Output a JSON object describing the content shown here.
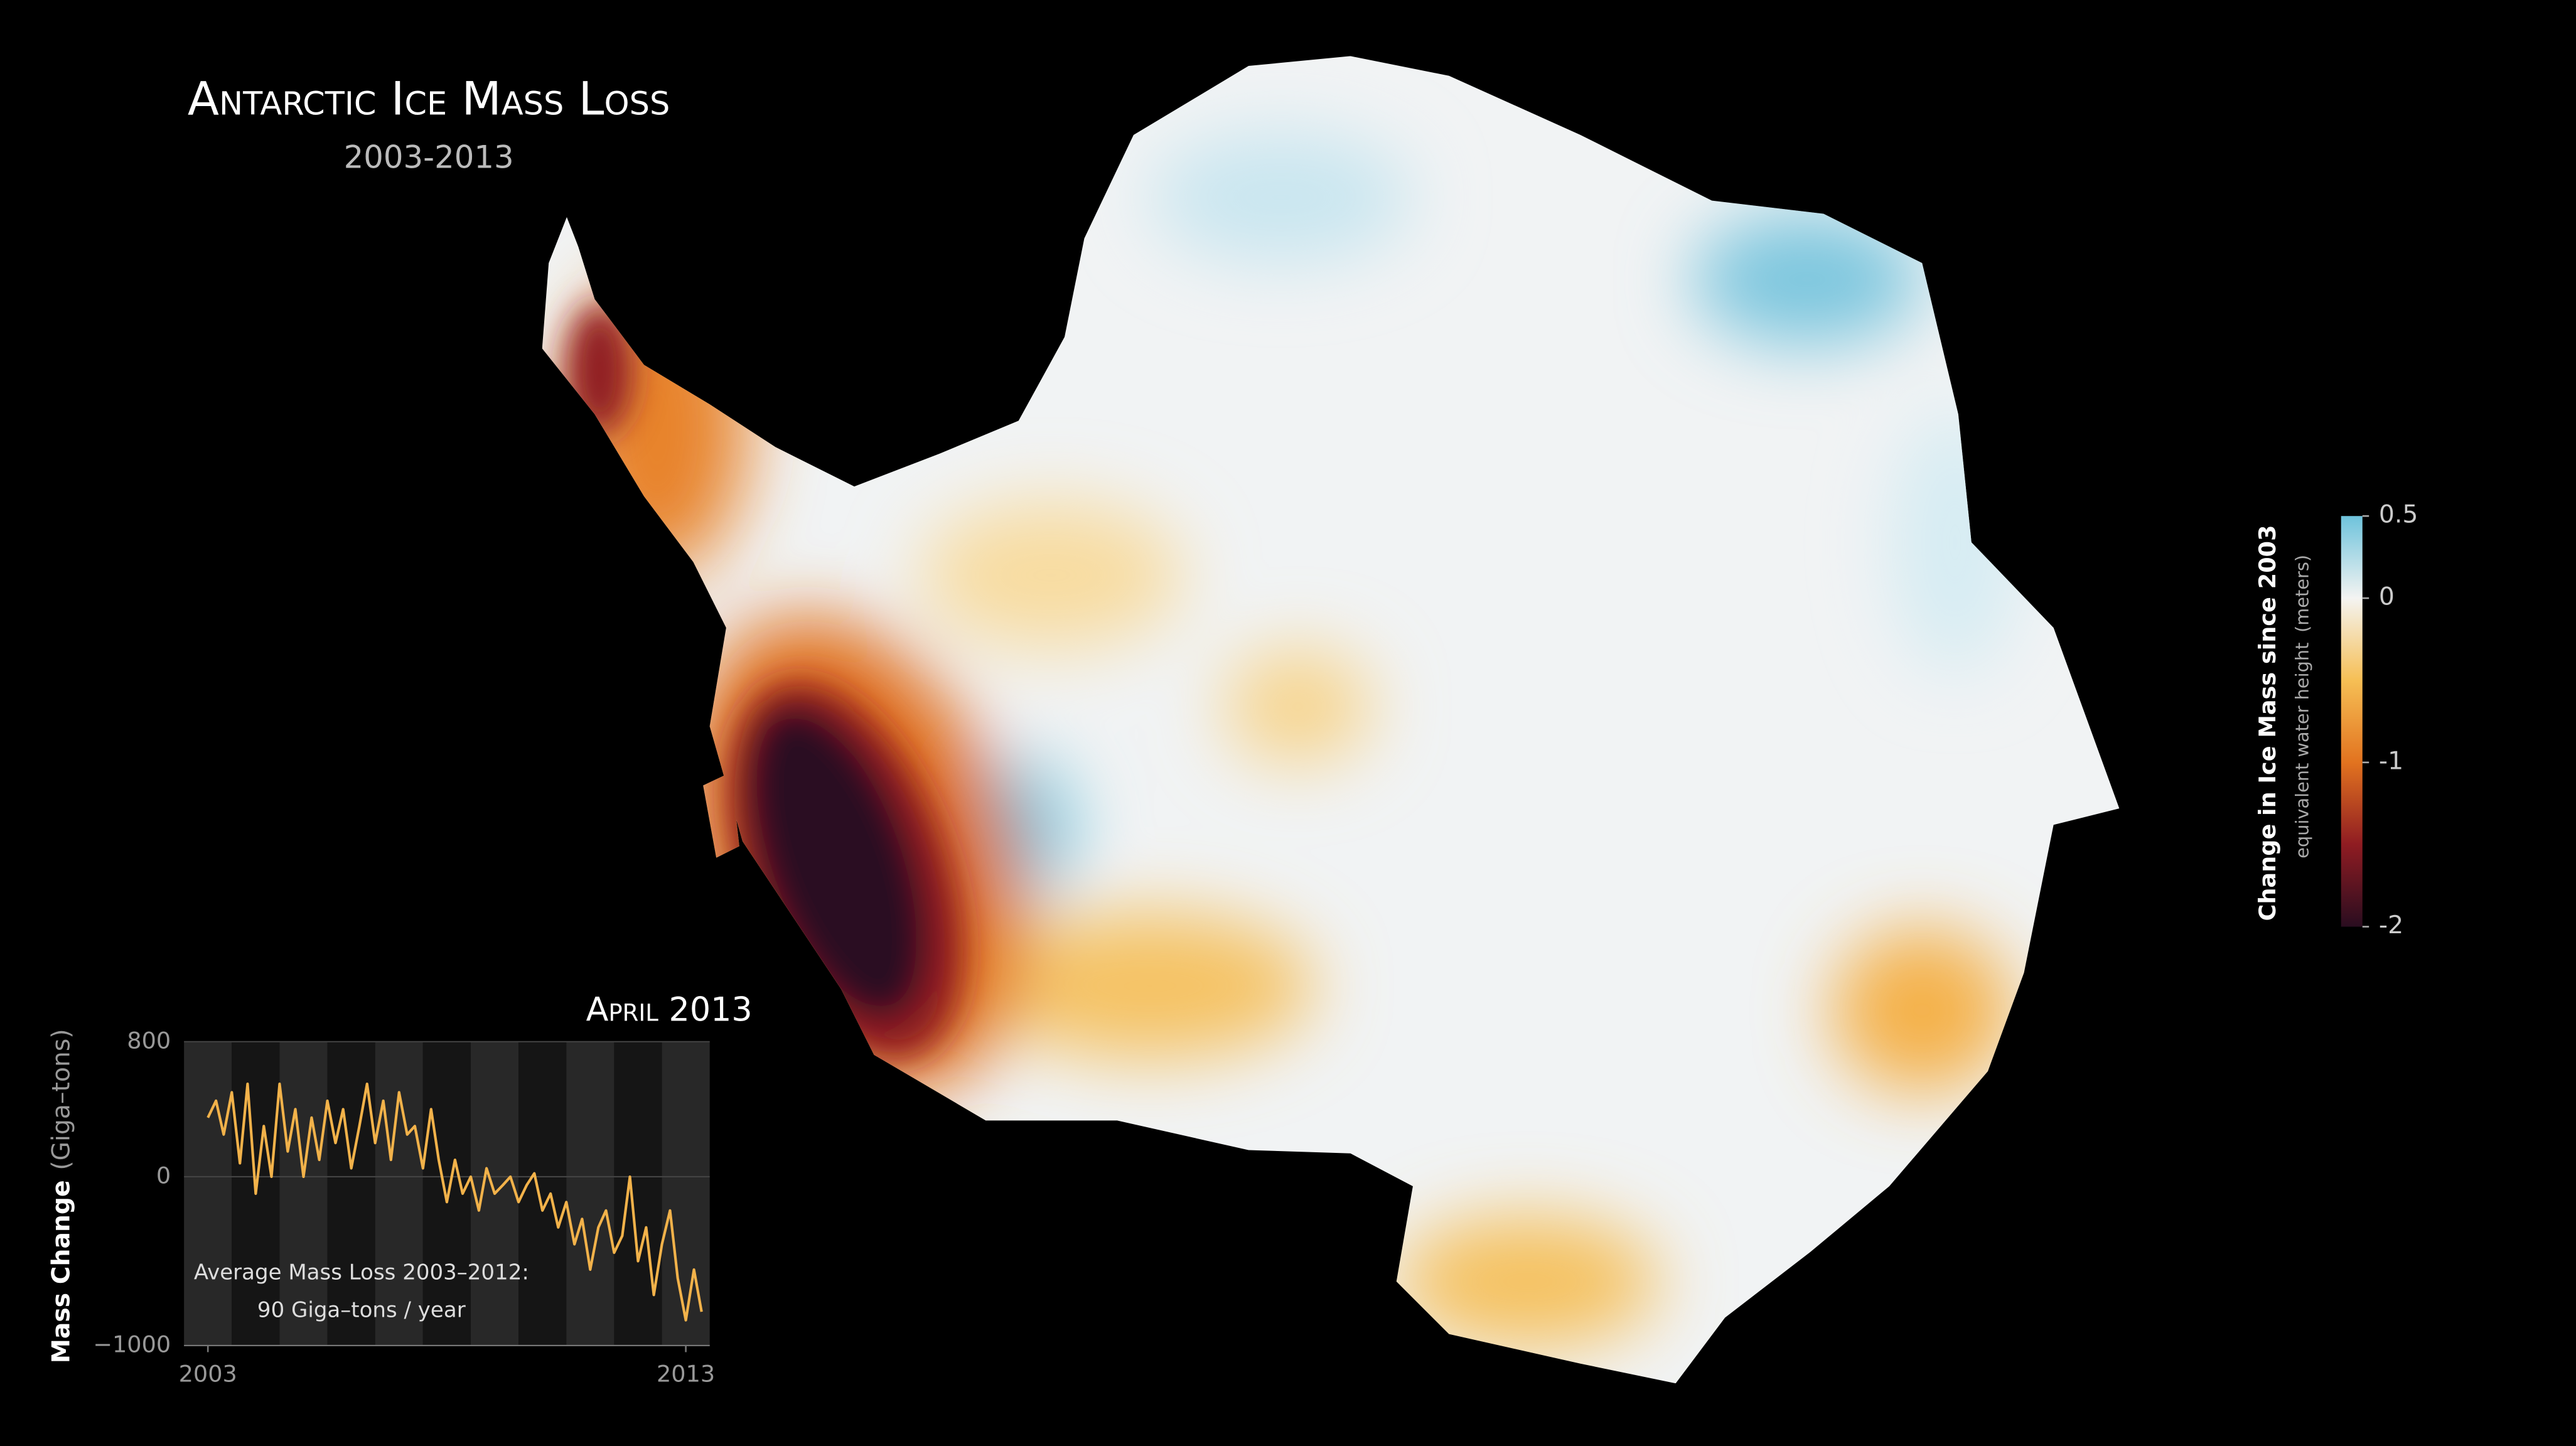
{
  "title": "Antarctic Ice Mass Loss",
  "subtitle": "2003-2013",
  "colorbar": {
    "label": "Change in Ice Mass since 2003",
    "sublabel": "equivalent water height",
    "unit": "(meters)",
    "clim": [
      -2,
      0.5
    ],
    "ticks": [
      0.5,
      0,
      -1,
      -2
    ],
    "colorscale": [
      [
        0.5,
        "#6ec3dc"
      ],
      [
        0,
        "#f4f4f2"
      ],
      [
        -0.5,
        "#f6bf55"
      ],
      [
        -1,
        "#e2731f"
      ],
      [
        -1.5,
        "#8f1c22"
      ],
      [
        -2,
        "#2a0d20"
      ]
    ]
  },
  "chart_data": {
    "type": "line",
    "title": "April 2013",
    "ylabel": "Mass Change",
    "yunit": "(Giga–tons)",
    "annotations": [
      "Average Mass Loss 2003–2012:",
      "90 Giga–tons / year"
    ],
    "color": "#f2b24a",
    "xlim": [
      2002.5,
      2013.5
    ],
    "ylim": [
      -1000,
      800
    ],
    "xticks": [
      2003,
      2013
    ],
    "yticks": [
      800,
      0,
      {
        "value": -1000,
        "label": "−1000"
      }
    ],
    "x": [
      2003,
      2003.17,
      2003.33,
      2003.5,
      2003.67,
      2003.83,
      2004,
      2004.17,
      2004.33,
      2004.5,
      2004.67,
      2004.83,
      2005,
      2005.17,
      2005.33,
      2005.5,
      2005.67,
      2005.83,
      2006,
      2006.17,
      2006.33,
      2006.5,
      2006.67,
      2006.83,
      2007,
      2007.17,
      2007.33,
      2007.5,
      2007.67,
      2007.83,
      2008,
      2008.17,
      2008.33,
      2008.5,
      2008.67,
      2008.83,
      2009,
      2009.17,
      2009.33,
      2009.5,
      2009.67,
      2009.83,
      2010,
      2010.17,
      2010.33,
      2010.5,
      2010.67,
      2010.83,
      2011,
      2011.17,
      2011.33,
      2011.5,
      2011.67,
      2011.83,
      2012,
      2012.17,
      2012.33,
      2012.5,
      2012.67,
      2012.83,
      2013,
      2013.17,
      2013.33
    ],
    "values": [
      350,
      450,
      250,
      500,
      80,
      550,
      -100,
      300,
      0,
      550,
      150,
      400,
      0,
      350,
      100,
      450,
      200,
      400,
      50,
      300,
      550,
      200,
      450,
      100,
      500,
      250,
      300,
      50,
      400,
      100,
      -150,
      100,
      -100,
      0,
      -200,
      50,
      -100,
      -50,
      0,
      -150,
      -50,
      20,
      -200,
      -100,
      -300,
      -150,
      -400,
      -250,
      -550,
      -300,
      -200,
      -450,
      -350,
      0,
      -500,
      -300,
      -700,
      -400,
      -200,
      -600,
      -850,
      -550,
      -800
    ]
  }
}
